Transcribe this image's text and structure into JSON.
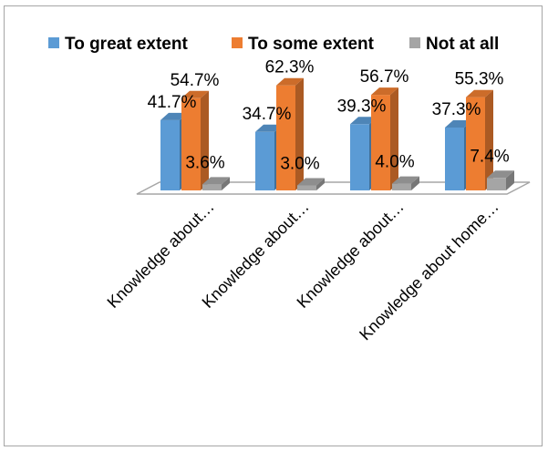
{
  "chart_data": {
    "type": "bar",
    "title": "",
    "xlabel": "",
    "ylabel": "",
    "ylim": [
      0,
      70
    ],
    "grid": false,
    "legend_position": "top",
    "categories": [
      "Knowledge about…",
      "Knowledge about…",
      "Knowledge about…",
      "Knowledge about home…"
    ],
    "series": [
      {
        "name": "To great extent",
        "color": "#5b9bd5",
        "values": [
          41.7,
          34.7,
          39.3,
          37.3
        ],
        "labels": [
          "41.7%",
          "34.7%",
          "39.3%",
          "37.3%"
        ]
      },
      {
        "name": "To some extent",
        "color": "#ed7d31",
        "values": [
          54.7,
          62.3,
          56.7,
          55.3
        ],
        "labels": [
          "54.7%",
          "62.3%",
          "56.7%",
          "55.3%"
        ]
      },
      {
        "name": "Not at all",
        "color": "#a5a5a5",
        "values": [
          3.6,
          3.0,
          4.0,
          7.4
        ],
        "labels": [
          "3.6%",
          "3.0%",
          "4.0%",
          "7.4%"
        ]
      }
    ]
  }
}
